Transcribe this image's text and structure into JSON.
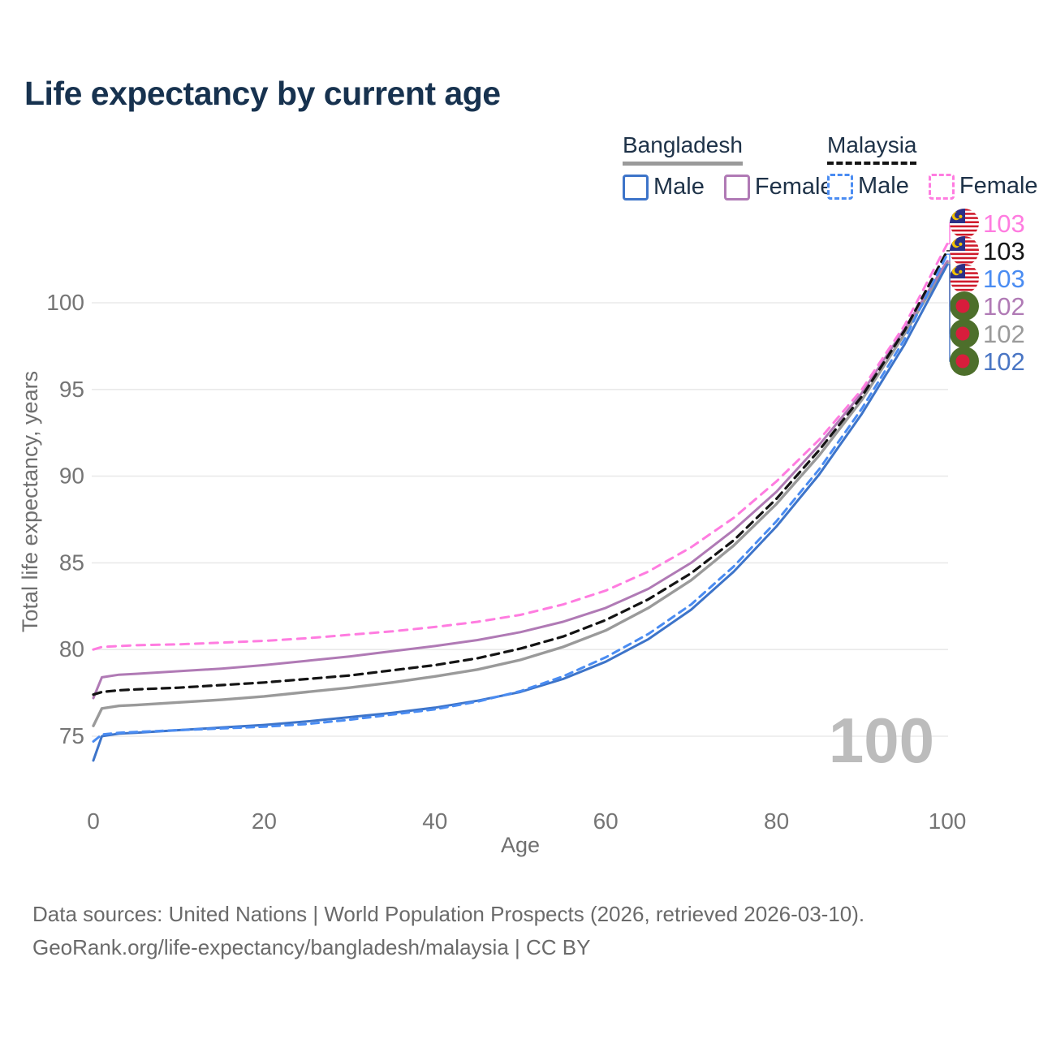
{
  "title": "Life expectancy by current age",
  "legend": {
    "groups": [
      {
        "label": "Bangladesh",
        "line": {
          "color": "#9a9a9a",
          "dash": "solid"
        },
        "items": [
          {
            "label": "Male",
            "color": "#3d74c9",
            "dash": "solid"
          },
          {
            "label": "Female",
            "color": "#b07ab5",
            "dash": "solid"
          }
        ]
      },
      {
        "label": "Malaysia",
        "line": {
          "color": "#141414",
          "dash": "dashed"
        },
        "items": [
          {
            "label": "Male",
            "color": "#4a8cf2",
            "dash": "dashed"
          },
          {
            "label": "Female",
            "color": "#ff7ce0",
            "dash": "dashed"
          }
        ]
      }
    ]
  },
  "chart_data": {
    "type": "line",
    "xlabel": "Age",
    "ylabel": "Total life expectancy, years",
    "xticks": [
      0,
      20,
      40,
      60,
      80,
      100
    ],
    "yticks": [
      75,
      80,
      85,
      90,
      95,
      100
    ],
    "xlim": [
      0,
      100
    ],
    "ylim": [
      73,
      104
    ],
    "grid": "horizontal",
    "watermark": "100",
    "ages": [
      0,
      1,
      3,
      5,
      10,
      15,
      20,
      25,
      30,
      35,
      40,
      45,
      50,
      55,
      60,
      65,
      70,
      75,
      80,
      85,
      90,
      95,
      100
    ],
    "series": [
      {
        "id": "bd_total",
        "name": "Bangladesh",
        "color": "#9a9a9a",
        "dash": null,
        "width": 3.4,
        "values": [
          75.6,
          76.6,
          76.75,
          76.8,
          76.95,
          77.1,
          77.3,
          77.55,
          77.8,
          78.1,
          78.45,
          78.85,
          79.4,
          80.15,
          81.1,
          82.4,
          84.0,
          86.0,
          88.4,
          91.2,
          94.4,
          98.2,
          102.3
        ]
      },
      {
        "id": "bd_female",
        "name": "Bangladesh Female",
        "color": "#b07ab5",
        "dash": null,
        "width": 3,
        "values": [
          77.2,
          78.4,
          78.55,
          78.6,
          78.75,
          78.9,
          79.1,
          79.35,
          79.6,
          79.9,
          80.2,
          80.55,
          81.0,
          81.6,
          82.4,
          83.5,
          85.0,
          86.9,
          89.1,
          91.8,
          94.8,
          98.5,
          102.4
        ]
      },
      {
        "id": "bd_male",
        "name": "Bangladesh Male",
        "color": "#3d74c9",
        "dash": null,
        "width": 3,
        "values": [
          73.6,
          75.0,
          75.15,
          75.2,
          75.35,
          75.5,
          75.65,
          75.85,
          76.1,
          76.35,
          76.65,
          77.05,
          77.55,
          78.3,
          79.3,
          80.6,
          82.3,
          84.5,
          87.1,
          90.1,
          93.6,
          97.6,
          102.2
        ]
      },
      {
        "id": "my_female",
        "name": "Malaysia Female",
        "color": "#ff7ce0",
        "dash": [
          10,
          8
        ],
        "width": 3,
        "values": [
          80.0,
          80.15,
          80.2,
          80.25,
          80.3,
          80.4,
          80.5,
          80.65,
          80.85,
          81.05,
          81.3,
          81.6,
          82.0,
          82.6,
          83.4,
          84.5,
          85.9,
          87.6,
          89.7,
          92.1,
          95.0,
          98.7,
          103.4
        ]
      },
      {
        "id": "my_total",
        "name": "Malaysia",
        "color": "#141414",
        "dash": [
          10,
          7
        ],
        "width": 3.2,
        "values": [
          77.4,
          77.55,
          77.65,
          77.7,
          77.8,
          77.95,
          78.1,
          78.3,
          78.5,
          78.8,
          79.1,
          79.5,
          80.05,
          80.75,
          81.7,
          82.9,
          84.4,
          86.3,
          88.7,
          91.5,
          94.6,
          98.4,
          103.0
        ]
      },
      {
        "id": "my_male",
        "name": "Malaysia Male",
        "color": "#4a8cf2",
        "dash": [
          9,
          7
        ],
        "width": 3,
        "values": [
          74.7,
          75.1,
          75.2,
          75.25,
          75.35,
          75.45,
          75.55,
          75.7,
          75.95,
          76.25,
          76.55,
          77.0,
          77.6,
          78.45,
          79.55,
          80.9,
          82.6,
          84.8,
          87.4,
          90.4,
          93.9,
          97.9,
          102.8
        ]
      }
    ],
    "end_labels": [
      {
        "series": "my_female",
        "label": "103",
        "flag": "malaysia",
        "color": "#ff7ce0"
      },
      {
        "series": "my_total",
        "label": "103",
        "flag": "malaysia",
        "color": "#141414"
      },
      {
        "series": "my_male",
        "label": "103",
        "flag": "malaysia",
        "color": "#4a8cf2"
      },
      {
        "series": "bd_female",
        "label": "102",
        "flag": "bangladesh",
        "color": "#b07ab5"
      },
      {
        "series": "bd_total",
        "label": "102",
        "flag": "bangladesh",
        "color": "#9a9a9a"
      },
      {
        "series": "bd_male",
        "label": "102",
        "flag": "bangladesh",
        "color": "#4a76c4"
      }
    ],
    "colors": {
      "gridline": "#eaeaea",
      "tick_text": "#757575",
      "axis_title": "#6f6f6f",
      "watermark": "#bcbcbc"
    },
    "flag_colors": {
      "bangladesh_green": "#4d6f2b",
      "bangladesh_red": "#d81d3c",
      "malaysia_red": "#cf1a2b",
      "malaysia_blue": "#2b3087",
      "malaysia_yellow": "#f3c200"
    }
  },
  "footer": {
    "line1": "Data sources: United Nations | World Population Prospects (2026, retrieved 2026-03-10).",
    "line2": "GeoRank.org/life-expectancy/bangladesh/malaysia | CC BY"
  }
}
